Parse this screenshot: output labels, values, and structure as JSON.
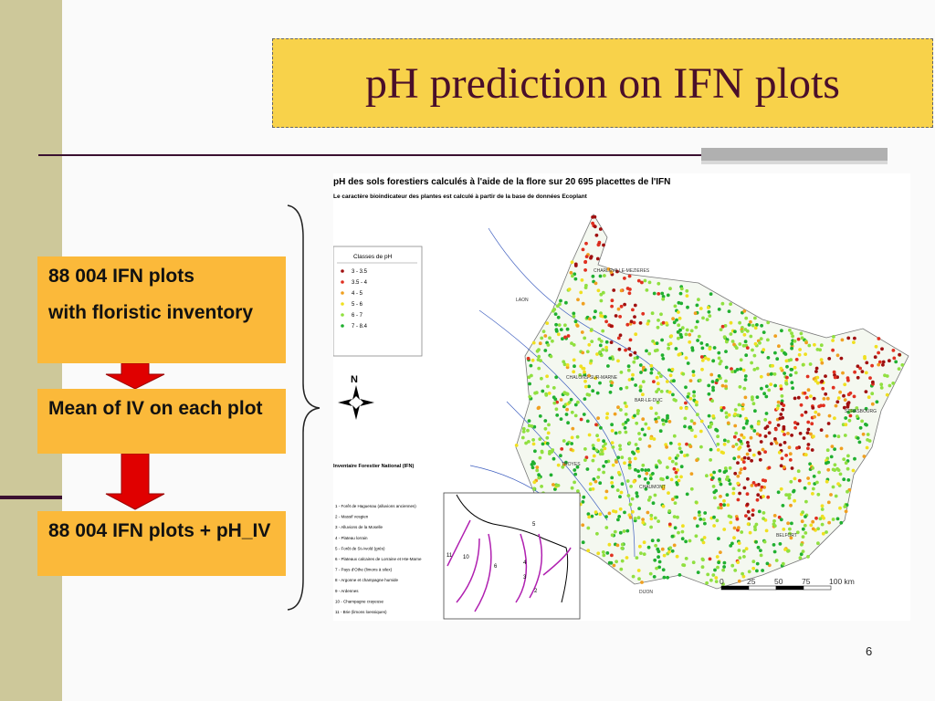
{
  "title": "pH prediction on IFN plots",
  "boxes": [
    [
      "88 004 IFN plots",
      "with floristic inventory"
    ],
    [
      "Mean of IV on each plot"
    ],
    [
      "88 004 IFN plots + pH_IV"
    ]
  ],
  "map": {
    "title": "pH des sols forestiers calculés à l'aide de la flore sur 20 695 placettes de l'IFN",
    "subtitle": "Le caractère bioindicateur des plantes est calculé à partir de la base de données Ecoplant",
    "legend_title": "Classes de  pH",
    "legend_items": [
      {
        "label": "3 - 3.5",
        "color": "#a01010"
      },
      {
        "label": "3.5 - 4",
        "color": "#e03020"
      },
      {
        "label": "4 - 5",
        "color": "#f0a020"
      },
      {
        "label": "5 - 6",
        "color": "#f0e020"
      },
      {
        "label": "6 - 7",
        "color": "#90e040"
      },
      {
        "label": "7 - 8.4",
        "color": "#20b030"
      }
    ],
    "north": "N",
    "source_label": "Inventaire Forestier National (IFN)",
    "zone_items": [
      "1 - Forêt de Haguenau (alluvions anciennes)",
      "2 - Massif vosgien",
      "3 - Alluvions de la Moselle",
      "4 - Plateau lorrain",
      "5 - Forêt de St-Avold (grès)",
      "6 - Plateaux calcaires de Lorraine et Hte-Marne",
      "7 - Pays d'Othe (limons à silex)",
      "8 - Argonne et champagne humide",
      "9 - Ardennes",
      "10 - Champagne crayeuse",
      "11 - Brie (limons loessiques)"
    ],
    "inset_labels": [
      "11",
      "10",
      "6",
      "5",
      "4",
      "3",
      "2"
    ],
    "scale_labels": [
      "0",
      "25",
      "50",
      "75",
      "100 km"
    ],
    "cities": [
      "CHARLEVILLE-MEZIERES",
      "LAON",
      "CHALONS-SUR-MARNE",
      "BAR-LE-DUC",
      "STRASBOURG",
      "TROYES",
      "CHAUMONT",
      "BELFORT",
      "DIJON"
    ]
  },
  "slide_number": "6"
}
